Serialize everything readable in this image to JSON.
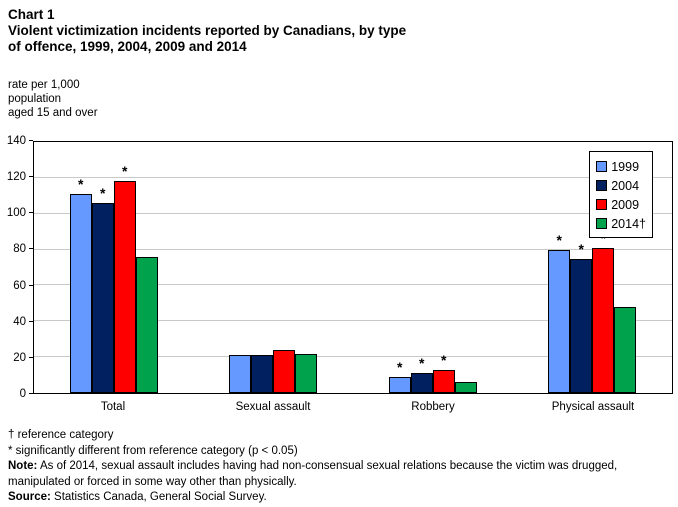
{
  "chart_data": {
    "type": "bar",
    "title": "Chart 1",
    "subtitle_lines": [
      "Violent victimization incidents reported by Canadians, by type",
      "of offence, 1999, 2004, 2009 and 2014"
    ],
    "ylabel_lines": [
      "rate per 1,000",
      "population",
      "aged 15 and over"
    ],
    "categories": [
      "Total",
      "Sexual assault",
      "Robbery",
      "Physical assault"
    ],
    "series": [
      {
        "name": "1999",
        "legend_label": "1999",
        "color": "#6699FF",
        "values": [
          111,
          21,
          9,
          80
        ],
        "significant": [
          true,
          false,
          true,
          true
        ]
      },
      {
        "name": "2004",
        "legend_label": "2004",
        "color": "#002060",
        "values": [
          106,
          21,
          11,
          75
        ],
        "significant": [
          true,
          false,
          true,
          true
        ]
      },
      {
        "name": "2009",
        "legend_label": "2009",
        "color": "#FF0000",
        "values": [
          118,
          24,
          13,
          81
        ],
        "significant": [
          true,
          false,
          true,
          true
        ]
      },
      {
        "name": "2014",
        "legend_label": "2014†",
        "color": "#00A24C",
        "values": [
          76,
          22,
          6,
          48
        ],
        "significant": [
          false,
          false,
          false,
          false
        ]
      }
    ],
    "ylim": [
      0,
      140
    ],
    "ytick_step": 20,
    "grid": true,
    "grid_color": "#C9C9C9",
    "legend_position": "top-right",
    "significance_marker": "*"
  },
  "footnotes": {
    "dagger": "† reference category",
    "asterisk": "* significantly different from reference category (p < 0.05)",
    "note_label": "Note:",
    "note_text": " As of 2014, sexual assault includes having had non-consensual sexual relations because the victim was drugged, manipulated or forced in some way other than physically.",
    "source_label": "Source:",
    "source_text": " Statistics Canada, General Social Survey."
  }
}
